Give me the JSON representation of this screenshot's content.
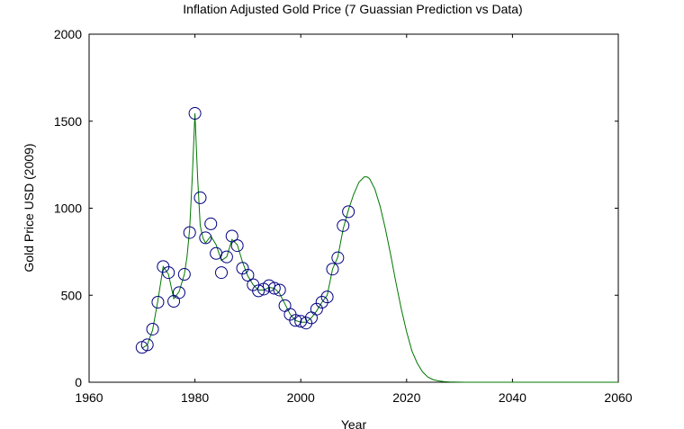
{
  "chart_data": {
    "type": "scatter",
    "title": "Inflation Adjusted Gold Price (7 Guassian Prediction vs Data)",
    "xlabel": "Year",
    "ylabel": "Gold Price USD (2009)",
    "xlim": [
      1960,
      2060
    ],
    "ylim": [
      0,
      2000
    ],
    "xticks": [
      1960,
      1980,
      2000,
      2020,
      2040,
      2060
    ],
    "yticks": [
      0,
      500,
      1000,
      1500,
      2000
    ],
    "grid": false,
    "legend": "none",
    "colors": {
      "data": "#000080",
      "model": "#007700"
    },
    "series": [
      {
        "kind": "markers",
        "marker": "circle",
        "x": [
          1970,
          1971,
          1972,
          1973,
          1974,
          1975,
          1976,
          1977,
          1978,
          1979,
          1980,
          1981,
          1982,
          1983,
          1984,
          1985,
          1986,
          1987,
          1988,
          1989,
          1990,
          1991,
          1992,
          1993,
          1994,
          1995,
          1996,
          1997,
          1998,
          1999,
          2000,
          2001,
          2002,
          2003,
          2004,
          2005,
          2006,
          2007,
          2008,
          2009
        ],
        "y": [
          200,
          215,
          305,
          460,
          665,
          630,
          465,
          515,
          620,
          860,
          1545,
          1060,
          830,
          910,
          740,
          630,
          720,
          840,
          785,
          655,
          615,
          560,
          525,
          535,
          555,
          540,
          530,
          440,
          390,
          355,
          350,
          340,
          370,
          420,
          460,
          490,
          650,
          715,
          900,
          980
        ]
      },
      {
        "kind": "line",
        "x": [
          1970,
          1971,
          1972,
          1973,
          1974,
          1975,
          1976,
          1977,
          1978,
          1978.5,
          1979,
          1979.5,
          1980,
          1980.5,
          1981,
          1981.5,
          1982,
          1983,
          1984,
          1985,
          1986,
          1987,
          1988,
          1989,
          1990,
          1991,
          1992,
          1993,
          1994,
          1995,
          1996,
          1997,
          1998,
          1999,
          2000,
          2001,
          2002,
          2003,
          2004,
          2005,
          2006,
          2007,
          2008,
          2009,
          2010,
          2011,
          2012,
          2012.5,
          2013,
          2014,
          2015,
          2016,
          2017,
          2018,
          2019,
          2020,
          2021,
          2022,
          2023,
          2024,
          2025,
          2026,
          2027,
          2028,
          2029,
          2030,
          2031,
          2032,
          2033,
          2035,
          2040,
          2045,
          2050,
          2055,
          2060
        ],
        "y": [
          195,
          215,
          300,
          470,
          665,
          620,
          480,
          520,
          620,
          720,
          880,
          1180,
          1545,
          1180,
          900,
          830,
          800,
          840,
          790,
          700,
          720,
          820,
          790,
          690,
          610,
          560,
          530,
          530,
          545,
          540,
          510,
          450,
          390,
          355,
          345,
          345,
          370,
          410,
          460,
          500,
          650,
          720,
          880,
          990,
          1080,
          1150,
          1180,
          1180,
          1170,
          1110,
          1010,
          880,
          730,
          570,
          420,
          290,
          180,
          110,
          60,
          30,
          15,
          8,
          4,
          2,
          1,
          0.5,
          0.2,
          0.1,
          0,
          0,
          0,
          0,
          0,
          0,
          0
        ]
      }
    ]
  }
}
